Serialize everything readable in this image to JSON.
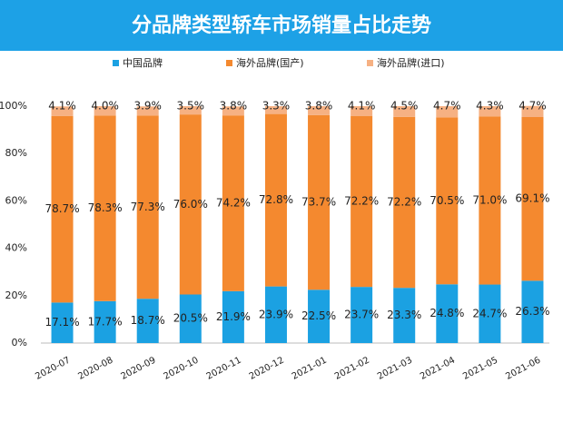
{
  "chart_data": {
    "type": "stacked_bar",
    "title": "分品牌类型轿车市场销量占比走势",
    "categories": [
      "2020-07",
      "2020-08",
      "2020-09",
      "2020-10",
      "2020-11",
      "2020-12",
      "2021-01",
      "2021-02",
      "2021-03",
      "2021-04",
      "2021-05",
      "2021-06"
    ],
    "series": [
      {
        "name": "中国品牌",
        "color": "#1ba1e2",
        "values": [
          17.1,
          17.7,
          18.7,
          20.5,
          21.9,
          23.9,
          22.5,
          23.7,
          23.3,
          24.8,
          24.7,
          26.3
        ],
        "value_labels": [
          "17.1%",
          "17.7%",
          "18.7%",
          "20.5%",
          "21.9%",
          "23.9%",
          "22.5%",
          "23.7%",
          "23.3%",
          "24.8%",
          "24.7%",
          "26.3%"
        ]
      },
      {
        "name": "海外品牌(国产)",
        "color": "#f4892f",
        "values": [
          78.7,
          78.3,
          77.3,
          76.0,
          74.2,
          72.8,
          73.7,
          72.2,
          72.2,
          70.5,
          71.0,
          69.1
        ],
        "value_labels": [
          "78.7%",
          "78.3%",
          "77.3%",
          "76.0%",
          "74.2%",
          "72.8%",
          "73.7%",
          "72.2%",
          "72.2%",
          "70.5%",
          "71.0%",
          "69.1%"
        ]
      },
      {
        "name": "海外品牌(进口)",
        "color": "#f6b183",
        "values": [
          4.1,
          4.0,
          3.9,
          3.5,
          3.8,
          3.3,
          3.8,
          4.1,
          4.5,
          4.7,
          4.3,
          4.7
        ],
        "value_labels": [
          "4.1%",
          "4.0%",
          "3.9%",
          "3.5%",
          "3.8%",
          "3.3%",
          "3.8%",
          "4.1%",
          "4.5%",
          "4.7%",
          "4.3%",
          "4.7%"
        ]
      }
    ],
    "ylim": [
      0,
      100
    ],
    "yticks": [
      {
        "value": 0,
        "label": "0%"
      },
      {
        "value": 20,
        "label": "20%"
      },
      {
        "value": 40,
        "label": "40%"
      },
      {
        "value": 60,
        "label": "60%"
      },
      {
        "value": 80,
        "label": "80%"
      },
      {
        "value": 100,
        "label": "100%"
      }
    ]
  }
}
